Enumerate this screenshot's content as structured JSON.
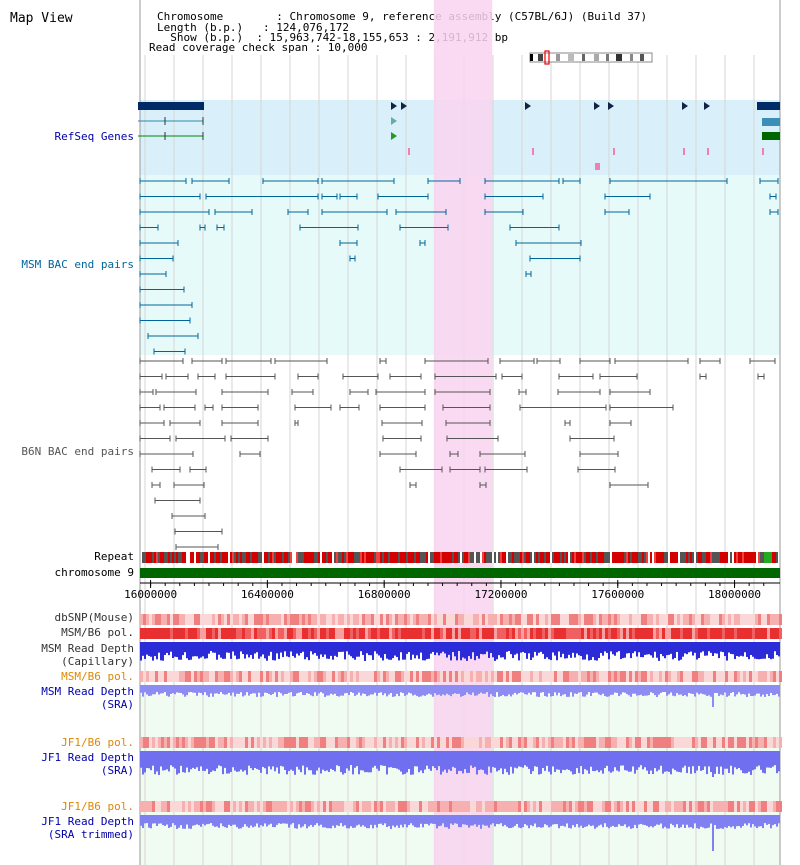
{
  "page_title": "Map View",
  "info": {
    "chromosome_line": "Chromosome        : Chromosome 9, reference assembly (C57BL/6J) (Build 37)",
    "length_line": "Length (b.p.)   : 124,076,172",
    "show_line": "  Show (b.p.)  : 15,963,742-18,155,653 : 2,191,912 bp",
    "coverage_line": "Read coverage check span : 10,000"
  },
  "tracks": {
    "refseq": "RefSeq Genes",
    "msm_bac": "MSM BAC end pairs",
    "b6n_bac": "B6N BAC end pairs",
    "repeat": "Repeat",
    "chromosome": "chromosome 9",
    "dbsnp": "dbSNP(Mouse)",
    "msm_b6_pol_1": "MSM/B6 pol.",
    "msm_depth_cap_1": "MSM Read Depth",
    "msm_depth_cap_2": "(Capillary)",
    "msm_b6_pol_2": "MSM/B6 pol.",
    "msm_depth_sra_1": "MSM Read Depth",
    "msm_depth_sra_2": "(SRA)",
    "jf1_b6_pol_1": "JF1/B6 pol.",
    "jf1_depth_sra_1": "JF1 Read Depth",
    "jf1_depth_sra_2": "(SRA)",
    "jf1_b6_pol_2": "JF1/B6 pol.",
    "jf1_depth_trim_1": "JF1 Read Depth",
    "jf1_depth_trim_2": "(SRA trimmed)"
  },
  "axis_ticks": [
    {
      "label": "16000000",
      "value": 16000000
    },
    {
      "label": "16400000",
      "value": 16400000
    },
    {
      "label": "16800000",
      "value": 16800000
    },
    {
      "label": "17200000",
      "value": 17200000
    },
    {
      "label": "17600000",
      "value": 17600000
    },
    {
      "label": "18000000",
      "value": 18000000
    }
  ],
  "view_range_bp": [
    15963742,
    18155653
  ],
  "highlight_bp": [
    16970000,
    17170000
  ],
  "colors": {
    "refseq": "#0000aa",
    "msm": "#006699",
    "b6n": "#555555",
    "sra": "#0000aa",
    "orange": "#dd8800",
    "highlight": "#f9d4f0",
    "chrom": "#006600",
    "gene_dark": "#002b66"
  }
}
